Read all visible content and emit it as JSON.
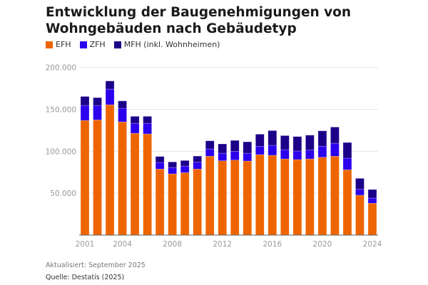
{
  "chart_data": {
    "type": "bar",
    "stacked": true,
    "title": "Entwicklung der Baugenehmigungen von Wohngebäuden nach Gebäudetyp",
    "categories": [
      "2001",
      "2002",
      "2003",
      "2004",
      "2005",
      "2006",
      "2007",
      "2008",
      "2009",
      "2010",
      "2011",
      "2012",
      "2013",
      "2014",
      "2015",
      "2016",
      "2017",
      "2018",
      "2019",
      "2020",
      "2021",
      "2022",
      "2023",
      "2024"
    ],
    "series": [
      {
        "name": "EFH",
        "color": "#EE6500",
        "values": [
          136800,
          137400,
          155500,
          135100,
          121500,
          120700,
          78800,
          73100,
          74500,
          78800,
          94100,
          88700,
          89500,
          88400,
          96000,
          95200,
          90900,
          90100,
          90900,
          92900,
          94100,
          77900,
          47600,
          38000
        ]
      },
      {
        "name": "ZFH",
        "color": "#2B00EC",
        "values": [
          17900,
          17300,
          18700,
          16200,
          11900,
          12700,
          7900,
          7600,
          7900,
          8200,
          8700,
          9000,
          10500,
          9300,
          10000,
          11900,
          11100,
          10200,
          10500,
          13100,
          15500,
          13900,
          7100,
          6200
        ]
      },
      {
        "name": "MFH (inkl. Wohnheimen)",
        "color": "#1C0088",
        "values": [
          10700,
          9300,
          9700,
          8800,
          8300,
          8300,
          7100,
          6600,
          6600,
          7300,
          9700,
          11100,
          13000,
          13600,
          14400,
          17600,
          16700,
          17300,
          17900,
          18400,
          19300,
          18700,
          13000,
          10200
        ]
      }
    ],
    "yticks": [
      "50.000",
      "100.000",
      "150.000",
      "200.000"
    ],
    "ytick_values": [
      50000,
      100000,
      150000,
      200000
    ],
    "xticks": [
      "2001",
      "2004",
      "2008",
      "2012",
      "2016",
      "2020",
      "2024"
    ],
    "ylim": [
      0,
      200000
    ],
    "grid": true,
    "legend": "top-left"
  },
  "footer": {
    "updated": "Aktualisiert: September 2025",
    "source": "Quelle: Destatis (2025)"
  }
}
